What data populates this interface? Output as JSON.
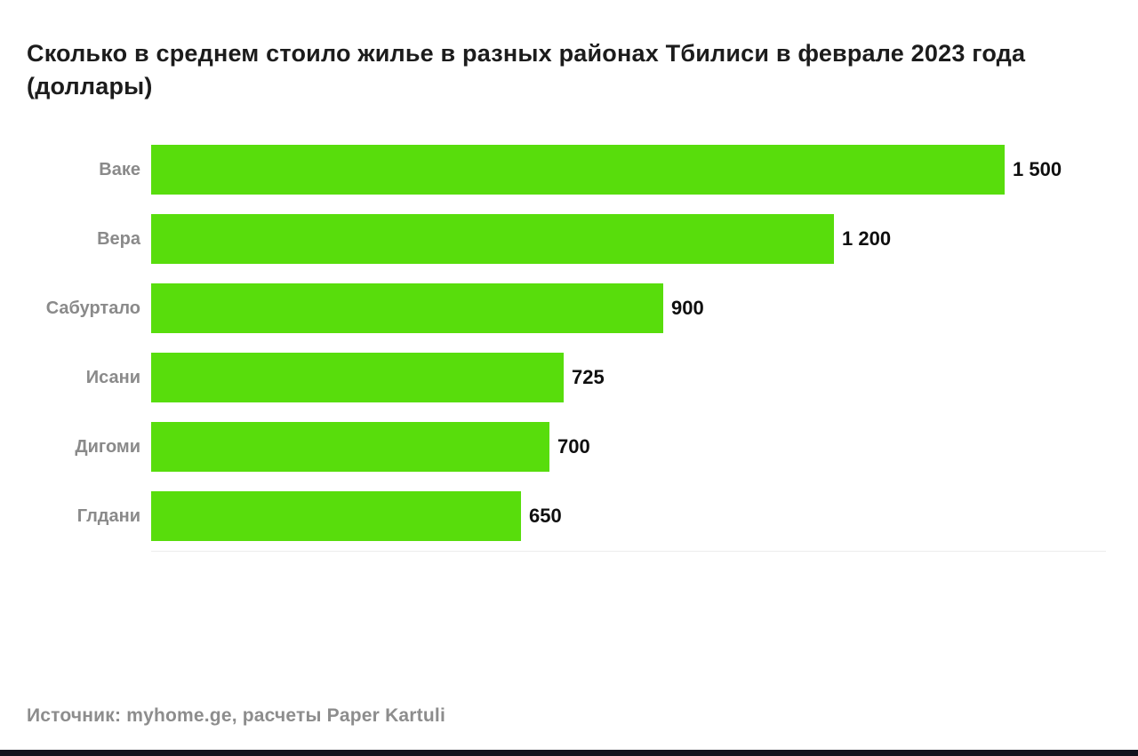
{
  "title": "Сколько в среднем стоило жилье в разных районах Тбилиси в феврале 2023 года (доллары)",
  "source": "Источник: myhome.ge, расчеты Paper Kartuli",
  "colors": {
    "page_bg": "#ffffff",
    "bar": "#58dd0c",
    "title_text": "#1c1c1c",
    "category_label": "#8a8a8a",
    "value_label": "#0f0f0f",
    "source_text": "#8d8d8d",
    "baseline": "#ececec",
    "bottom_strip": "#12121e"
  },
  "chart_data": {
    "type": "bar",
    "orientation": "horizontal",
    "title": "Сколько в среднем стоило жилье в разных районах Тбилиси в феврале 2023 года (доллары)",
    "categories": [
      "Ваке",
      "Вера",
      "Сабуртало",
      "Исани",
      "Дигоми",
      "Глдани"
    ],
    "values": [
      1500,
      1200,
      900,
      725,
      700,
      650
    ],
    "value_labels": [
      "1 500",
      "1 200",
      "900",
      "725",
      "700",
      "650"
    ],
    "unit": "доллары",
    "xlim": [
      0,
      1500
    ],
    "grid": false,
    "legend": "none",
    "source": "Источник: myhome.ge, расчеты Paper Kartuli"
  }
}
